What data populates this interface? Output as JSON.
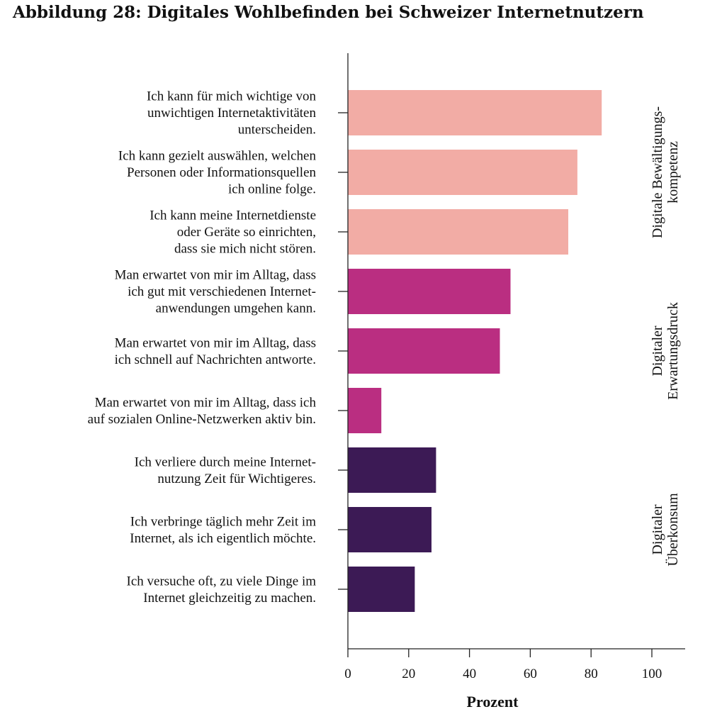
{
  "chart_data": {
    "type": "bar",
    "orientation": "horizontal",
    "title": "Abbildung 28: Digitales Wohlbefinden bei Schweizer Internetnutzern",
    "xlabel": "Prozent",
    "ylabel": "",
    "xlim": [
      0,
      100
    ],
    "xticks": [
      "0",
      "20",
      "40",
      "60",
      "80",
      "100"
    ],
    "grid": false,
    "categories": [
      [
        "Ich kann für mich wichtige von",
        "unwichtigen Internetaktivitäten",
        "unterscheiden."
      ],
      [
        "Ich kann gezielt auswählen, welchen",
        "Personen oder Informationsquellen",
        "ich online folge."
      ],
      [
        "Ich kann meine Internetdienste",
        "oder Geräte so einrichten,",
        "dass sie mich nicht stören."
      ],
      [
        "Man erwartet von mir im Alltag, dass",
        "ich gut mit verschiedenen Internet-",
        "anwendungen umgehen kann."
      ],
      [
        "Man erwartet von mir im Alltag, dass",
        "ich schnell auf Nachrichten antworte."
      ],
      [
        "Man erwartet von mir im Alltag, dass ich",
        "auf sozialen Online-Netzwerken aktiv bin."
      ],
      [
        "Ich verliere durch meine Internet-",
        "nutzung Zeit für Wichtigeres."
      ],
      [
        "Ich verbringe täglich mehr Zeit im",
        "Internet, als ich eigentlich möchte."
      ],
      [
        "Ich versuche oft, zu viele Dinge im",
        "Internet gleichzeitig zu machen."
      ]
    ],
    "values": [
      83.5,
      75.5,
      72.5,
      53.5,
      50,
      11,
      29,
      27.5,
      22
    ],
    "groups": [
      {
        "name": [
          "Digitale Bewältigungs-",
          "kompetenz"
        ],
        "indices": [
          0,
          1,
          2
        ],
        "color": "#f2aca5"
      },
      {
        "name": [
          "Digitaler",
          "Erwartungsdruck"
        ],
        "indices": [
          3,
          4,
          5
        ],
        "color": "#ba2e81"
      },
      {
        "name": [
          "Digitaler",
          "Überkonsum"
        ],
        "indices": [
          6,
          7,
          8
        ],
        "color": "#3c1a55"
      }
    ]
  }
}
